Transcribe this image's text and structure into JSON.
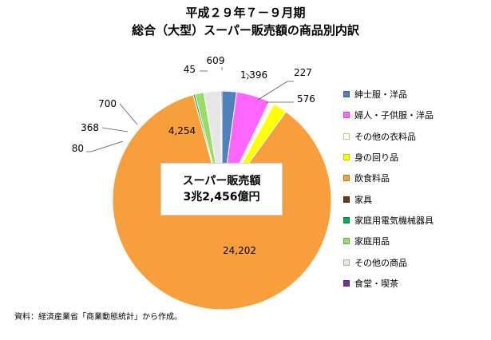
{
  "title_line1": "平成２９年７－９月期",
  "title_line2": "総合（大型）スーパー販売額の商品別内訳",
  "center_label": {
    "line1": "スーパー販売額",
    "line2": "3兆2,456億円"
  },
  "source_note": "資料：経済産業省「商業動態統計」から作成。",
  "chart_data": {
    "type": "pie",
    "start_angle_deg": 0,
    "direction": "clockwise",
    "legend_position": "right",
    "slices": [
      {
        "label": "紳士服・洋品",
        "value": 609,
        "display": "609",
        "color": "#4F81BD"
      },
      {
        "label": "婦人・子供服・洋品",
        "value": 1396,
        "display": "1,396",
        "color": "#FF66FF"
      },
      {
        "label": "その他の衣料品",
        "value": 227,
        "display": "227",
        "color": "#FFFFE0"
      },
      {
        "label": "身の回り品",
        "value": 576,
        "display": "576",
        "color": "#FFFF00"
      },
      {
        "label": "飲食料品",
        "value": 24202,
        "display": "24,202",
        "color": "#F79F3D"
      },
      {
        "label": "家具",
        "value": 0,
        "display": "",
        "color": "#6B3A12"
      },
      {
        "label": "家庭用電気機械器具",
        "value": 80,
        "display": "80",
        "color": "#00B050"
      },
      {
        "label": "家庭用品",
        "value": 368,
        "display": "368",
        "color": "#99DD66"
      },
      {
        "label": "その他の商品",
        "value": 700,
        "display": "700",
        "color": "#E6E6E6"
      },
      {
        "label": "食堂・喫茶",
        "value": 45,
        "display": "45",
        "color": "#7030A0"
      }
    ],
    "extra_labels": [
      {
        "text": "4,254"
      }
    ]
  }
}
